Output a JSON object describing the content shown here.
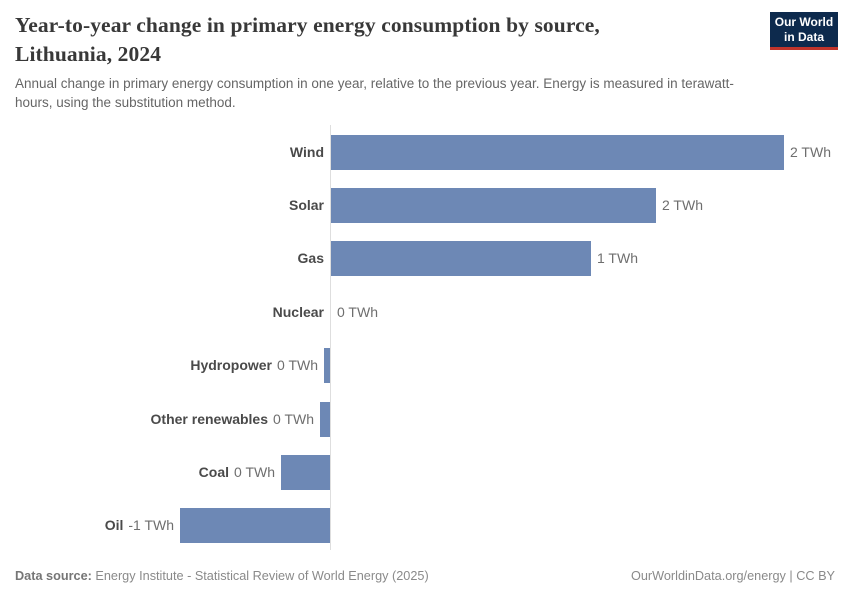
{
  "header": {
    "title_lines": [
      "Year-to-year change in primary energy consumption by source,",
      "Lithuania, 2024"
    ],
    "subtitle": "Annual change in primary energy consumption in one year, relative to the previous year. Energy is measured in terawatt-hours, using the substitution method.",
    "logo": {
      "line1": "Our World",
      "line2": "in Data"
    }
  },
  "footer": {
    "datasource_label": "Data source:",
    "datasource_text": " Energy Institute - Statistical Review of World Energy (2025)",
    "license_text": "OurWorldinData.org/energy | CC BY"
  },
  "colors": {
    "bar": "#6d88b5",
    "axis_line": "#dedede",
    "logo_background": "#0d2a4d",
    "logo_accent": "#c0342b"
  },
  "chart_data": {
    "type": "bar",
    "orientation": "horizontal",
    "title": "Year-to-year change in primary energy consumption by source, Lithuania, 2024",
    "unit": "TWh",
    "xlabel": "",
    "ylabel": "",
    "xlim": [
      -1,
      2.6
    ],
    "grid": false,
    "legend": false,
    "zero_axis": true,
    "categories": [
      "Wind",
      "Solar",
      "Gas",
      "Nuclear",
      "Hydropower",
      "Other renewables",
      "Coal",
      "Oil"
    ],
    "values": [
      2.3,
      1.65,
      1.32,
      0,
      -0.03,
      -0.05,
      -0.25,
      -0.76
    ],
    "value_labels": [
      "2 TWh",
      "2 TWh",
      "1 TWh",
      "0 TWh",
      "0 TWh",
      "0 TWh",
      "0 TWh",
      "-1 TWh"
    ]
  }
}
